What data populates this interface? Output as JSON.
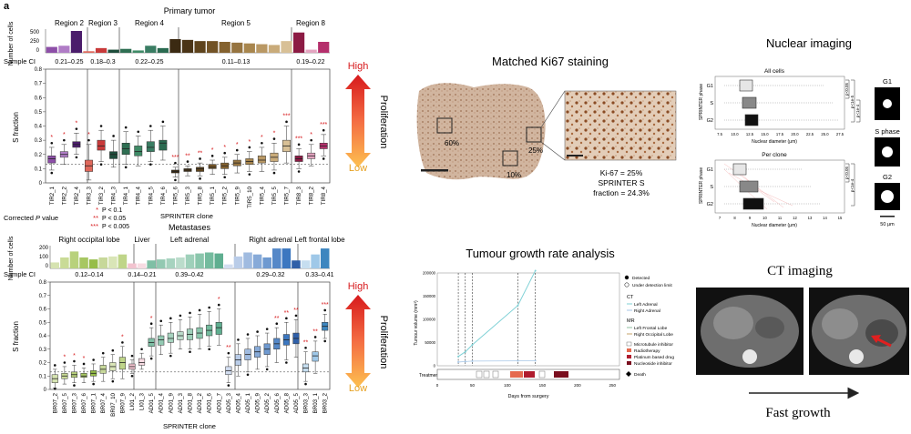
{
  "panel_label": "a",
  "colors": {
    "arrow_top": "#d7191c",
    "arrow_mid": "#f46d43",
    "arrow_bottom": "#fdae61",
    "sig_star": "#d7191c"
  },
  "top_chart": {
    "title": "Primary tumor",
    "y_count_label": "Number of cells",
    "count_ticks": [
      "500",
      "250",
      "0"
    ],
    "sample_ci_label": "Sample CI",
    "y_label": "S fraction",
    "y_ticks": [
      "0.8",
      "0.7",
      "0.6",
      "0.5",
      "0.4",
      "0.3",
      "0.2",
      "0.1",
      "0"
    ],
    "x_label": "SPRINTER clone",
    "regions": [
      {
        "name": "Region 2",
        "ci": "0.21–0.25"
      },
      {
        "name": "Region 3",
        "ci": "0.18–0.3"
      },
      {
        "name": "Region 4",
        "ci": "0.22–0.25"
      },
      {
        "name": "Region 5",
        "ci": "0.11–0.13"
      },
      {
        "name": "Region 8",
        "ci": "0.19–0.22"
      }
    ]
  },
  "legend": {
    "title_prefix": "Corrected ",
    "title_p": "P",
    "title_suffix": " value",
    "rows": [
      {
        "stars": "*",
        "text": "P < 0.1"
      },
      {
        "stars": "**",
        "text": "P < 0.05"
      },
      {
        "stars": "***",
        "text": "P < 0.005"
      }
    ]
  },
  "bottom_chart": {
    "title": "Metastases",
    "y_count_label": "Number of cells",
    "count_ticks": [
      "200",
      "100",
      "0"
    ],
    "sample_ci_label": "Sample CI",
    "y_label": "S fraction",
    "y_ticks": [
      "0.8",
      "0.7",
      "0.6",
      "0.5",
      "0.4",
      "0.3",
      "0.2",
      "0.1",
      "0"
    ],
    "x_label": "SPRINTER clone",
    "regions": [
      {
        "name": "Right occipital lobe",
        "ci": "0.12–0.14"
      },
      {
        "name": "Liver",
        "ci": "0.14–0.21"
      },
      {
        "name": "Left adrenal",
        "ci": "0.39–0.42"
      },
      {
        "name": "Right adrenal",
        "ci": "0.29–0.32"
      },
      {
        "name": "Left frontal lobe",
        "ci": "0.33–0.41"
      }
    ]
  },
  "proliferation": {
    "label": "Proliferation",
    "high": "High",
    "low": "Low"
  },
  "ki67": {
    "title": "Matched Ki67 staining",
    "pct_a": "60%",
    "pct_b": "10%",
    "pct_c": "25%",
    "stats": [
      "Ki-67 = 25%",
      "SPRINTER S",
      "fraction = 24.3%"
    ]
  },
  "nuclear": {
    "title": "Nuclear imaging",
    "all_cells": "All cells",
    "per_clone": "Per clone",
    "y_label": "SPRINTER phase",
    "x_label": "Nuclear diameter (μm)",
    "phases": [
      "G1",
      "S",
      "G2"
    ],
    "sig_labels": [
      "p<0.05",
      "p<1e-5",
      "p<1e-4",
      "p<0.05",
      "p<1e-4"
    ],
    "x_ticks_all": [
      "7.5",
      "10.0",
      "12.5",
      "15.0",
      "17.5",
      "20.0",
      "22.5",
      "25.0",
      "27.5"
    ],
    "x_ticks_clone": [
      "7",
      "8",
      "9",
      "10",
      "11",
      "12",
      "13",
      "14",
      "15"
    ],
    "cell_labels": [
      "G1",
      "S phase",
      "G2"
    ],
    "scale_bar": "50 μm"
  },
  "growth": {
    "title": "Tumour growth rate analysis",
    "y_label": "Tumour volume (mm³)",
    "y_ticks": [
      "200000",
      "150000",
      "100000",
      "50000",
      "0"
    ],
    "x_label": "Days from surgery",
    "x_ticks": [
      "0",
      "50",
      "100",
      "150",
      "200",
      "250"
    ],
    "treatment_label": "Treatment",
    "legend_detected": "Detected",
    "legend_undetected": "Under detection limit",
    "legend_ct": "CT",
    "legend_ct_items": [
      "Left Adrenal",
      "Right Adrenal"
    ],
    "legend_mr": "MR",
    "legend_mr_items": [
      "Left Frontal Lobe",
      "Right Occipital Lobe"
    ],
    "legend_treat": [
      "Microtubule inhibitor",
      "Radiotherapy",
      "Platinum based drug",
      "Nucleoside inhibitor"
    ],
    "legend_death": "Death"
  },
  "ct": {
    "title": "CT imaging",
    "caption": "Fast growth"
  }
}
